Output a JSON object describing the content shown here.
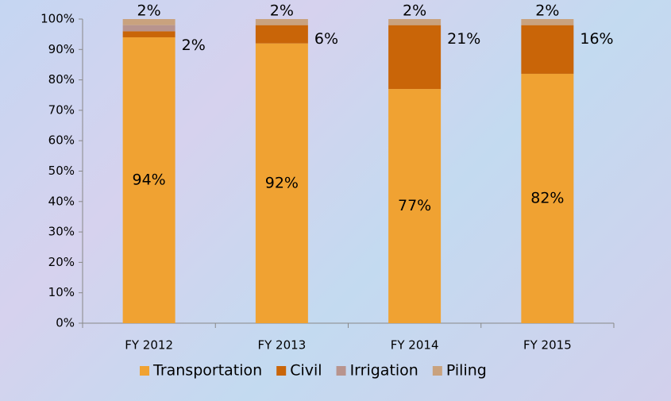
{
  "chart_data": {
    "type": "stacked_bar",
    "categories": [
      "FY 2012",
      "FY 2013",
      "FY 2014",
      "FY 2015"
    ],
    "series": [
      {
        "name": "Transportation",
        "color": "#f0a232",
        "values": [
          94,
          92,
          77,
          82
        ],
        "value_labels": [
          "94%",
          "92%",
          "77%",
          "82%"
        ]
      },
      {
        "name": "Civil",
        "color": "#c96508",
        "values": [
          2,
          6,
          21,
          16
        ],
        "value_labels": [
          "2%",
          "6%",
          "21%",
          "16%"
        ]
      },
      {
        "name": "Irrigation",
        "color": "#b8948e",
        "values": [
          2,
          0,
          0,
          0
        ]
      },
      {
        "name": "Piling",
        "color": "#c9a27e",
        "values": [
          2,
          2,
          2,
          2
        ],
        "value_labels": [
          "2%",
          "2%",
          "2%",
          "2%"
        ]
      }
    ],
    "ylim": [
      0,
      100
    ],
    "yticks": [
      {
        "value": 0,
        "label": "0%"
      },
      {
        "value": 10,
        "label": "10%"
      },
      {
        "value": 20,
        "label": "20%"
      },
      {
        "value": 30,
        "label": "30%"
      },
      {
        "value": 40,
        "label": "40%"
      },
      {
        "value": 50,
        "label": "50%"
      },
      {
        "value": 60,
        "label": "60%"
      },
      {
        "value": 70,
        "label": "70%"
      },
      {
        "value": 80,
        "label": "80%"
      },
      {
        "value": 90,
        "label": "90%"
      },
      {
        "value": 100,
        "label": "100%"
      }
    ],
    "legend": "bottom"
  }
}
